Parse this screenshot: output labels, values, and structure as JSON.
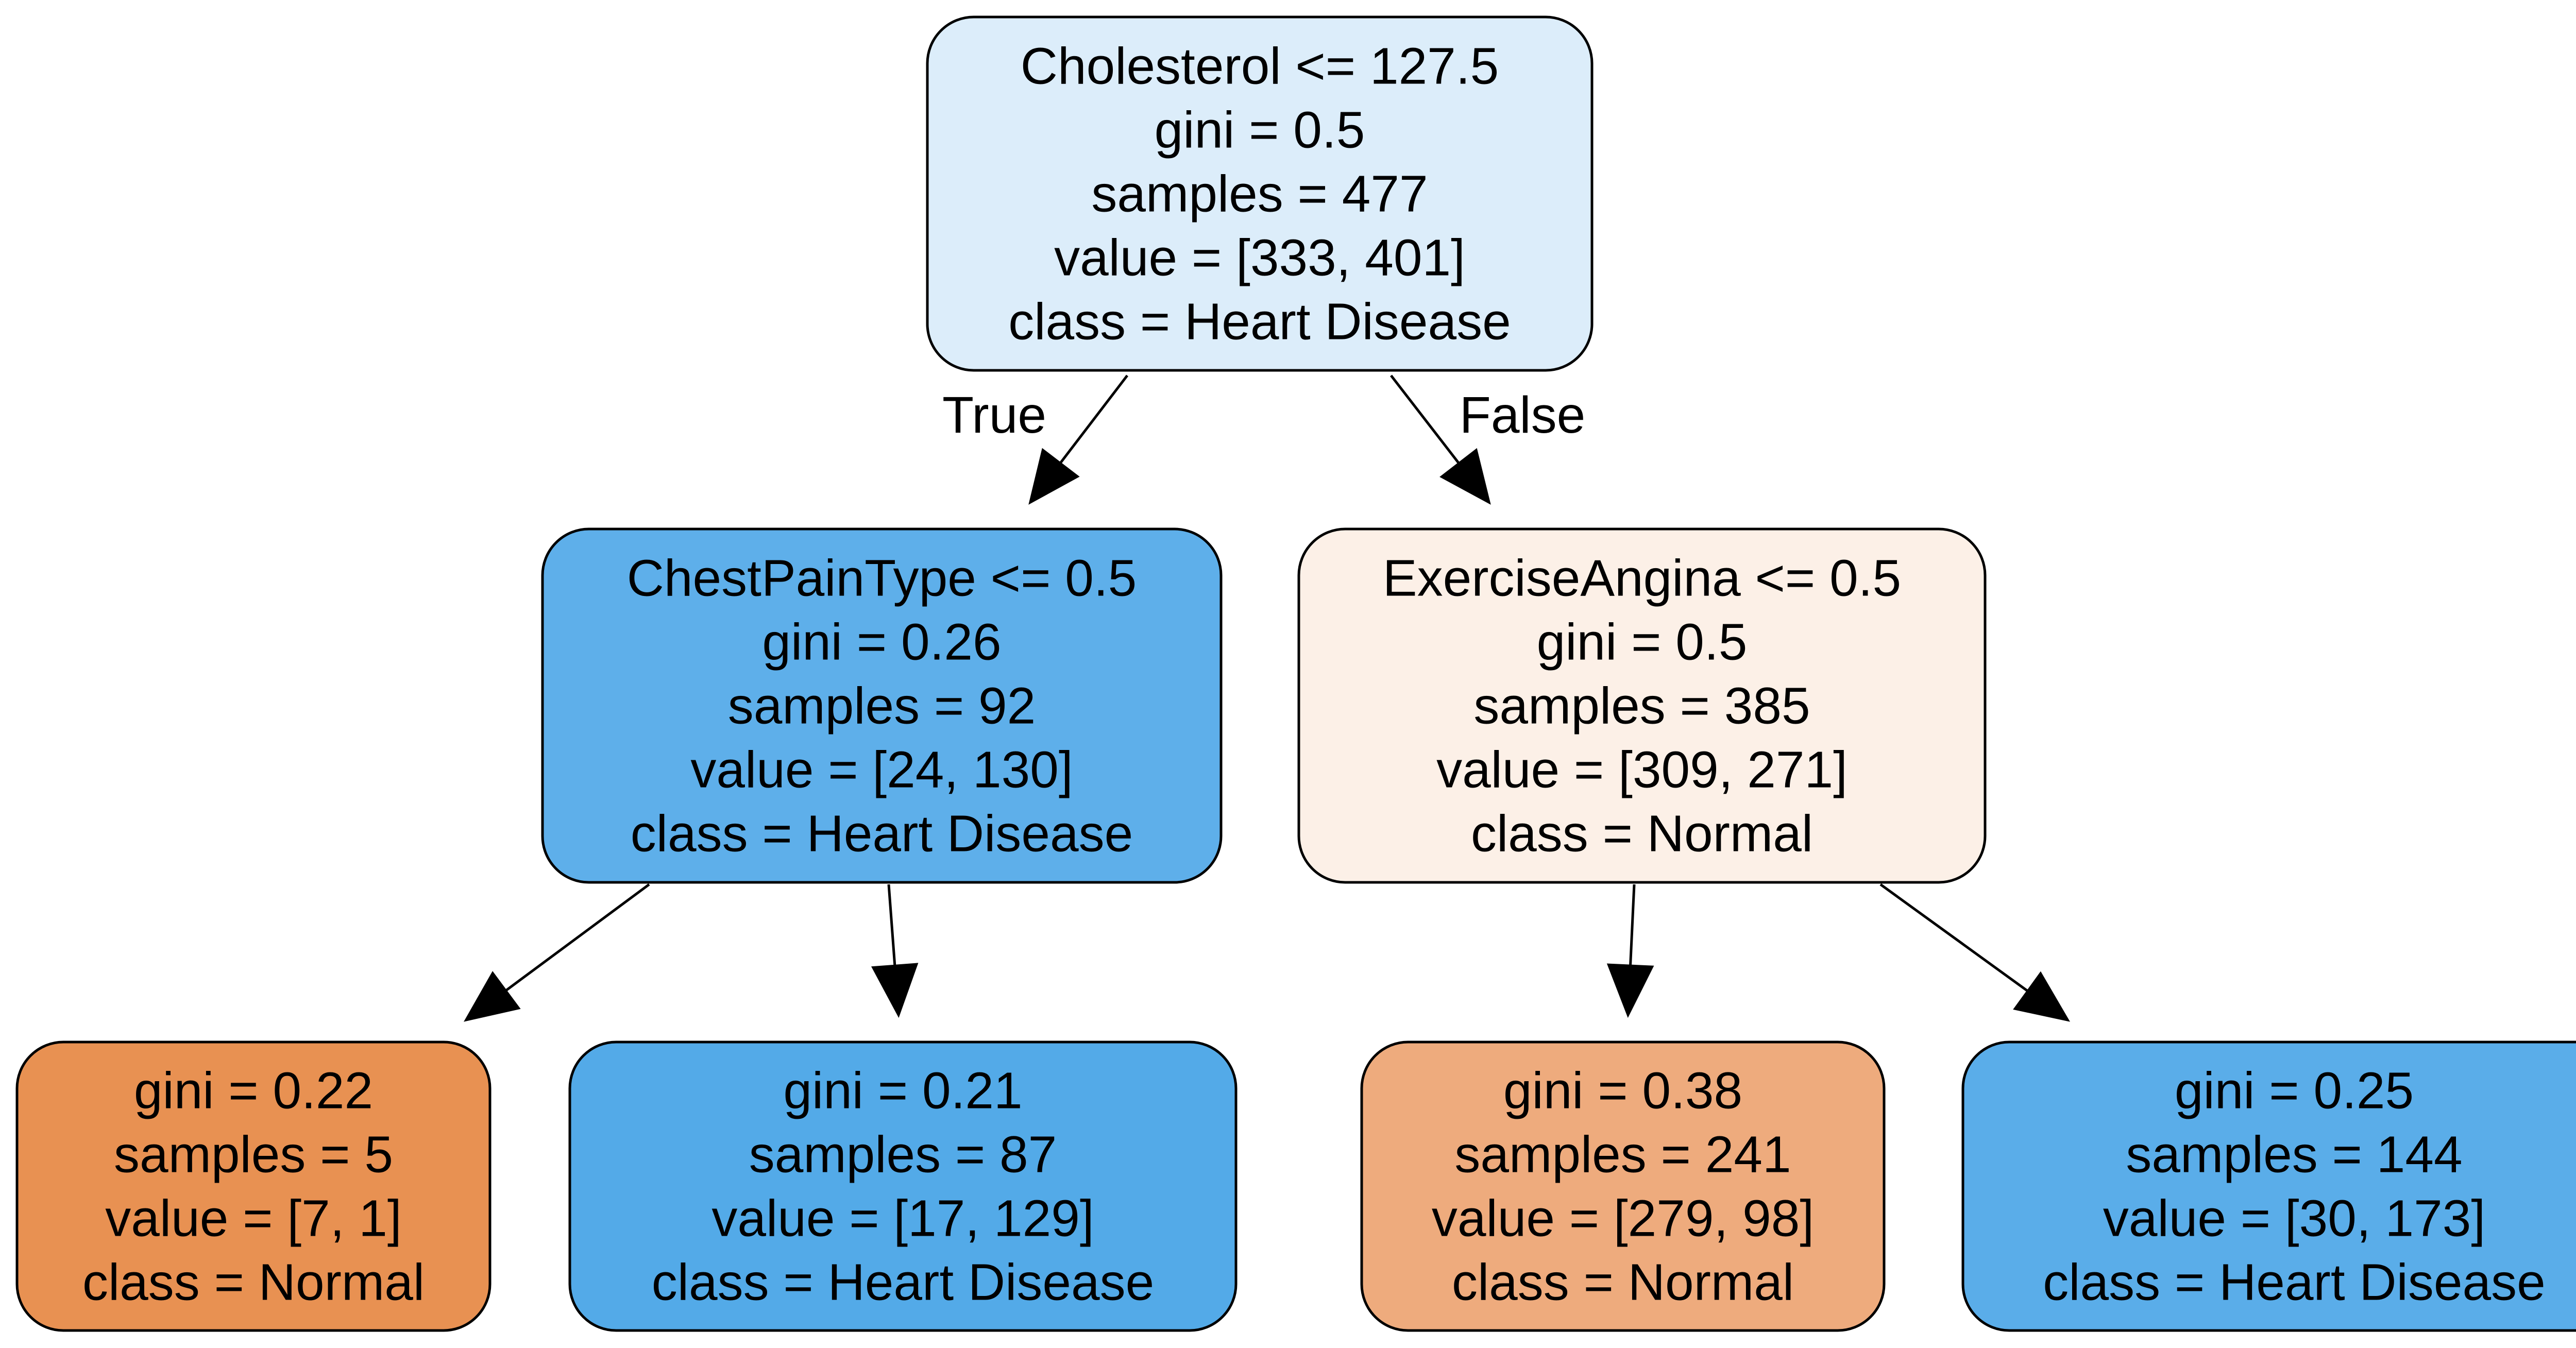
{
  "tree": {
    "nodes": [
      {
        "id": "root",
        "fill": "#dcedfa",
        "lines": [
          "Cholesterol <= 127.5",
          "gini = 0.5",
          "samples = 477",
          "value = [333, 401]",
          "class = Heart Disease"
        ]
      },
      {
        "id": "left",
        "fill": "#5eafea",
        "lines": [
          "ChestPainType <= 0.5",
          "gini = 0.26",
          "samples = 92",
          "value = [24, 130]",
          "class = Heart Disease"
        ]
      },
      {
        "id": "right",
        "fill": "#fcf0e7",
        "lines": [
          "ExerciseAngina <= 0.5",
          "gini = 0.5",
          "samples = 385",
          "value = [309, 271]",
          "class = Normal"
        ]
      },
      {
        "id": "ll",
        "fill": "#e89152",
        "lines": [
          "gini = 0.22",
          "samples = 5",
          "value = [7, 1]",
          "class = Normal"
        ]
      },
      {
        "id": "lr",
        "fill": "#53aae8",
        "lines": [
          "gini = 0.21",
          "samples = 87",
          "value = [17, 129]",
          "class = Heart Disease"
        ]
      },
      {
        "id": "rl",
        "fill": "#eeab7d",
        "lines": [
          "gini = 0.38",
          "samples = 241",
          "value = [279, 98]",
          "class = Normal"
        ]
      },
      {
        "id": "rr",
        "fill": "#5aade9",
        "lines": [
          "gini = 0.25",
          "samples = 144",
          "value = [30, 173]",
          "class = Heart Disease"
        ]
      }
    ],
    "edges": [
      {
        "from": "root",
        "to": "left",
        "label": "True"
      },
      {
        "from": "root",
        "to": "right",
        "label": "False"
      },
      {
        "from": "left",
        "to": "ll",
        "label": ""
      },
      {
        "from": "left",
        "to": "lr",
        "label": ""
      },
      {
        "from": "right",
        "to": "rl",
        "label": ""
      },
      {
        "from": "right",
        "to": "rr",
        "label": ""
      }
    ]
  }
}
